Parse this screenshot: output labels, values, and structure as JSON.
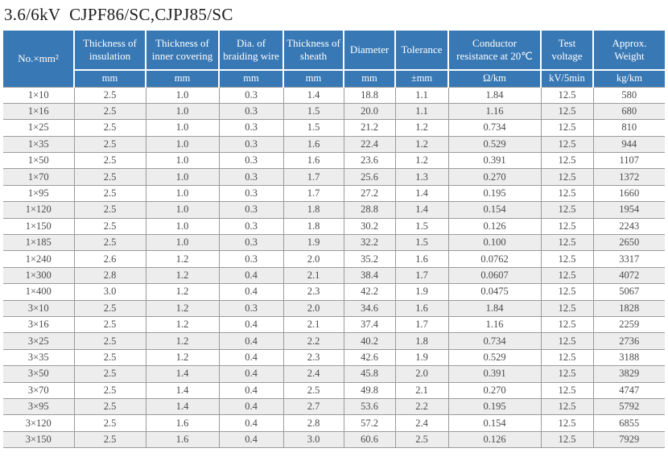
{
  "title": "3.6/6kV  CJPF86/SC,CJPJ85/SC",
  "colors": {
    "header_bg": "#3878b4",
    "header_text": "#ffffff",
    "alt_row_bg": "#ededed",
    "grid_border": "#9b9b9b"
  },
  "table": {
    "columns": [
      {
        "label": "No.×mm²",
        "unit": ""
      },
      {
        "label": "Thickness of insulation",
        "unit": "mm"
      },
      {
        "label": "Thickness of inner covering",
        "unit": "mm"
      },
      {
        "label": "Dia. of braiding wire",
        "unit": "mm"
      },
      {
        "label": "Thickness of sheath",
        "unit": "mm"
      },
      {
        "label": "Diameter",
        "unit": "mm"
      },
      {
        "label": "Tolerance",
        "unit": "±mm"
      },
      {
        "label": "Conductor resistance at 20℃",
        "unit": "Ω/km"
      },
      {
        "label": "Test voltage",
        "unit": "kV/5min"
      },
      {
        "label": "Approx. Weight",
        "unit": "kg/km"
      }
    ],
    "rows": [
      [
        "1×10",
        "2.5",
        "1.0",
        "0.3",
        "1.4",
        "18.8",
        "1.1",
        "1.84",
        "12.5",
        "580"
      ],
      [
        "1×16",
        "2.5",
        "1.0",
        "0.3",
        "1.5",
        "20.0",
        "1.1",
        "1.16",
        "12.5",
        "680"
      ],
      [
        "1×25",
        "2.5",
        "1.0",
        "0.3",
        "1.5",
        "21.2",
        "1.2",
        "0.734",
        "12.5",
        "810"
      ],
      [
        "1×35",
        "2.5",
        "1.0",
        "0.3",
        "1.6",
        "22.4",
        "1.2",
        "0.529",
        "12.5",
        "944"
      ],
      [
        "1×50",
        "2.5",
        "1.0",
        "0.3",
        "1.6",
        "23.6",
        "1.2",
        "0.391",
        "12.5",
        "1107"
      ],
      [
        "1×70",
        "2.5",
        "1.0",
        "0.3",
        "1.7",
        "25.6",
        "1.3",
        "0.270",
        "12.5",
        "1372"
      ],
      [
        "1×95",
        "2.5",
        "1.0",
        "0.3",
        "1.7",
        "27.2",
        "1.4",
        "0.195",
        "12.5",
        "1660"
      ],
      [
        "1×120",
        "2.5",
        "1.0",
        "0.3",
        "1.8",
        "28.8",
        "1.4",
        "0.154",
        "12.5",
        "1954"
      ],
      [
        "1×150",
        "2.5",
        "1.0",
        "0.3",
        "1.8",
        "30.2",
        "1.5",
        "0.126",
        "12.5",
        "2243"
      ],
      [
        "1×185",
        "2.5",
        "1.0",
        "0.3",
        "1.9",
        "32.2",
        "1.5",
        "0.100",
        "12.5",
        "2650"
      ],
      [
        "1×240",
        "2.6",
        "1.2",
        "0.3",
        "2.0",
        "35.2",
        "1.6",
        "0.0762",
        "12.5",
        "3317"
      ],
      [
        "1×300",
        "2.8",
        "1.2",
        "0.4",
        "2.1",
        "38.4",
        "1.7",
        "0.0607",
        "12.5",
        "4072"
      ],
      [
        "1×400",
        "3.0",
        "1.2",
        "0.4",
        "2.3",
        "42.2",
        "1.9",
        "0.0475",
        "12.5",
        "5067"
      ],
      [
        "3×10",
        "2.5",
        "1.2",
        "0.3",
        "2.0",
        "34.6",
        "1.6",
        "1.84",
        "12.5",
        "1828"
      ],
      [
        "3×16",
        "2.5",
        "1.2",
        "0.4",
        "2.1",
        "37.4",
        "1.7",
        "1.16",
        "12.5",
        "2259"
      ],
      [
        "3×25",
        "2.5",
        "1.2",
        "0.4",
        "2.2",
        "40.2",
        "1.8",
        "0.734",
        "12.5",
        "2736"
      ],
      [
        "3×35",
        "2.5",
        "1.2",
        "0.4",
        "2.3",
        "42.6",
        "1.9",
        "0.529",
        "12.5",
        "3188"
      ],
      [
        "3×50",
        "2.5",
        "1.4",
        "0.4",
        "2.4",
        "45.8",
        "2.0",
        "0.391",
        "12.5",
        "3829"
      ],
      [
        "3×70",
        "2.5",
        "1.4",
        "0.4",
        "2.5",
        "49.8",
        "2.1",
        "0.270",
        "12.5",
        "4747"
      ],
      [
        "3×95",
        "2.5",
        "1.4",
        "0.4",
        "2.7",
        "53.6",
        "2.2",
        "0.195",
        "12.5",
        "5792"
      ],
      [
        "3×120",
        "2.5",
        "1.6",
        "0.4",
        "2.8",
        "57.2",
        "2.4",
        "0.154",
        "12.5",
        "6855"
      ],
      [
        "3×150",
        "2.5",
        "1.6",
        "0.4",
        "3.0",
        "60.6",
        "2.5",
        "0.126",
        "12.5",
        "7929"
      ]
    ]
  }
}
